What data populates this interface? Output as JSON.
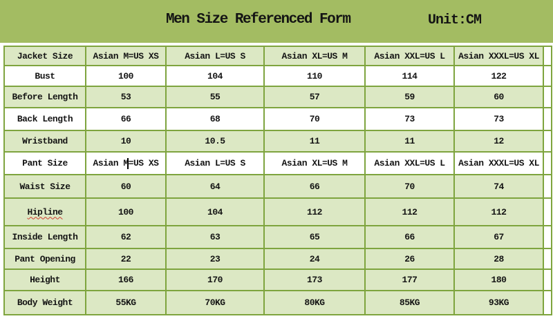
{
  "page": {
    "title": "Men Size Referenced Form",
    "unit_label": "Unit:CM",
    "colors": {
      "banner": "#a3bc62",
      "row_green": "#dce8c4",
      "row_white": "#ffffff",
      "border": "#7ea43e",
      "text": "#141414",
      "spellcheck": "#cf3b2f"
    }
  },
  "table": {
    "rows": [
      {
        "label": "Jacket Size",
        "values": [
          "Asian M=US XS",
          "Asian L=US S",
          "Asian XL=US M",
          "Asian XXL=US L",
          "Asian XXXL=US XL"
        ]
      },
      {
        "label": "Bust",
        "values": [
          "100",
          "104",
          "110",
          "114",
          "122"
        ]
      },
      {
        "label": "Before Length",
        "values": [
          "53",
          "55",
          "57",
          "59",
          "60"
        ]
      },
      {
        "label": "Back Length",
        "values": [
          "66",
          "68",
          "70",
          "73",
          "73"
        ]
      },
      {
        "label": "Wristband",
        "values": [
          "10",
          "10.5",
          "11",
          "11",
          "12"
        ]
      },
      {
        "label": "Pant Size",
        "values": [
          "Asian M=US XS",
          "Asian L=US S",
          "Asian XL=US M",
          "Asian XXL=US L",
          "Asian XXXL=US XL"
        ]
      },
      {
        "label": "Waist Size",
        "values": [
          "60",
          "64",
          "66",
          "70",
          "74"
        ]
      },
      {
        "label": "Hipline",
        "values": [
          "100",
          "104",
          "112",
          "112",
          "112"
        ]
      },
      {
        "label": "Inside Length",
        "values": [
          "62",
          "63",
          "65",
          "66",
          "67"
        ]
      },
      {
        "label": "Pant Opening",
        "values": [
          "22",
          "23",
          "24",
          "26",
          "28"
        ]
      },
      {
        "label": "Height",
        "values": [
          "166",
          "170",
          "173",
          "177",
          "180"
        ]
      },
      {
        "label": "Body Weight",
        "values": [
          "55KG",
          "70KG",
          "80KG",
          "85KG",
          "93KG"
        ]
      }
    ],
    "annotations": {
      "spellcheck_underline_row": "Hipline",
      "text_cursor_row": "Pant Size",
      "text_cursor_after": "Asian M="
    }
  }
}
